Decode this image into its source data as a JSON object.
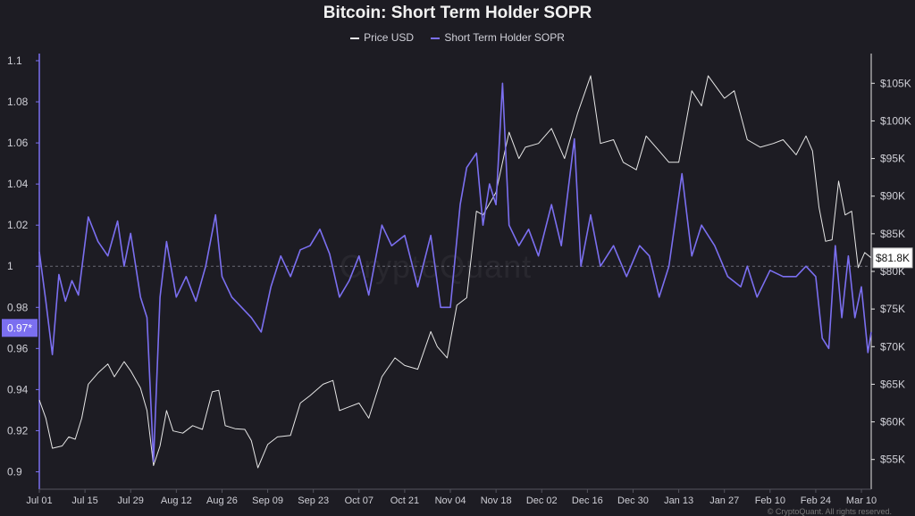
{
  "chart_data": {
    "type": "line",
    "title": "Bitcoin: Short Term Holder SOPR",
    "watermark": "CryptoQuant",
    "copyright": "© CryptoQuant. All rights reserved.",
    "grid": false,
    "legend_placement": "top-center",
    "x_ticks": [
      "Jul 01",
      "Jul 15",
      "Jul 29",
      "Aug 12",
      "Aug 26",
      "Sep 09",
      "Sep 23",
      "Oct 07",
      "Oct 21",
      "Nov 04",
      "Nov 18",
      "Dec 02",
      "Dec 16",
      "Dec 30",
      "Jan 13",
      "Jan 27",
      "Feb 10",
      "Feb 24",
      "Mar 10"
    ],
    "x_range": [
      "2024-07-01",
      "2025-03-13"
    ],
    "left_axis": {
      "ticks": [
        "1.1",
        "1.08",
        "1.06",
        "1.04",
        "1.02",
        "1",
        "0.98",
        "0.96",
        "0.94",
        "0.92",
        "0.9"
      ],
      "range": [
        0.895,
        1.1
      ]
    },
    "right_axis": {
      "ticks": [
        "$105K",
        "$100K",
        "$95K",
        "$90K",
        "$85K",
        "$80K",
        "$75K",
        "$70K",
        "$65K",
        "$60K",
        "$55K"
      ],
      "range": [
        52000,
        108000
      ]
    },
    "current_values": {
      "sopr_label": "0.97*",
      "sopr_value": 0.97,
      "price_label": "$81.8K",
      "price_value": 81800
    },
    "reference_line": 1,
    "colors": {
      "price": "#e6e6e6",
      "sopr": "#7b6ff0",
      "background": "#1d1c23"
    },
    "series": [
      {
        "name": "Price USD",
        "axis": "right",
        "points": [
          [
            "2024-07-01",
            62900
          ],
          [
            "2024-07-03",
            60500
          ],
          [
            "2024-07-05",
            56500
          ],
          [
            "2024-07-08",
            56800
          ],
          [
            "2024-07-10",
            58000
          ],
          [
            "2024-07-12",
            57700
          ],
          [
            "2024-07-14",
            60500
          ],
          [
            "2024-07-16",
            65000
          ],
          [
            "2024-07-19",
            66500
          ],
          [
            "2024-07-22",
            67700
          ],
          [
            "2024-07-24",
            66000
          ],
          [
            "2024-07-27",
            68000
          ],
          [
            "2024-07-29",
            66800
          ],
          [
            "2024-08-01",
            64500
          ],
          [
            "2024-08-03",
            61500
          ],
          [
            "2024-08-05",
            54200
          ],
          [
            "2024-08-07",
            56800
          ],
          [
            "2024-08-09",
            61500
          ],
          [
            "2024-08-11",
            58800
          ],
          [
            "2024-08-14",
            58500
          ],
          [
            "2024-08-17",
            59500
          ],
          [
            "2024-08-20",
            59000
          ],
          [
            "2024-08-23",
            64000
          ],
          [
            "2024-08-25",
            64200
          ],
          [
            "2024-08-27",
            59500
          ],
          [
            "2024-08-30",
            59100
          ],
          [
            "2024-09-02",
            59000
          ],
          [
            "2024-09-04",
            57500
          ],
          [
            "2024-09-06",
            53900
          ],
          [
            "2024-09-09",
            57000
          ],
          [
            "2024-09-12",
            58000
          ],
          [
            "2024-09-16",
            58200
          ],
          [
            "2024-09-19",
            62500
          ],
          [
            "2024-09-22",
            63500
          ],
          [
            "2024-09-26",
            65000
          ],
          [
            "2024-09-29",
            65500
          ],
          [
            "2024-10-01",
            61500
          ],
          [
            "2024-10-04",
            62000
          ],
          [
            "2024-10-07",
            62500
          ],
          [
            "2024-10-10",
            60500
          ],
          [
            "2024-10-14",
            66000
          ],
          [
            "2024-10-18",
            68500
          ],
          [
            "2024-10-21",
            67500
          ],
          [
            "2024-10-25",
            67000
          ],
          [
            "2024-10-29",
            72000
          ],
          [
            "2024-10-31",
            70000
          ],
          [
            "2024-11-03",
            68500
          ],
          [
            "2024-11-06",
            75500
          ],
          [
            "2024-11-09",
            76500
          ],
          [
            "2024-11-12",
            88000
          ],
          [
            "2024-11-14",
            87500
          ],
          [
            "2024-11-18",
            90500
          ],
          [
            "2024-11-22",
            98500
          ],
          [
            "2024-11-25",
            95000
          ],
          [
            "2024-11-27",
            96500
          ],
          [
            "2024-12-01",
            97000
          ],
          [
            "2024-12-05",
            99000
          ],
          [
            "2024-12-09",
            95000
          ],
          [
            "2024-12-13",
            101000
          ],
          [
            "2024-12-17",
            106000
          ],
          [
            "2024-12-20",
            97000
          ],
          [
            "2024-12-24",
            97500
          ],
          [
            "2024-12-27",
            94500
          ],
          [
            "2024-12-31",
            93500
          ],
          [
            "2025-01-03",
            98000
          ],
          [
            "2025-01-07",
            96000
          ],
          [
            "2025-01-10",
            94500
          ],
          [
            "2025-01-13",
            94500
          ],
          [
            "2025-01-17",
            104000
          ],
          [
            "2025-01-20",
            102000
          ],
          [
            "2025-01-22",
            106000
          ],
          [
            "2025-01-27",
            103000
          ],
          [
            "2025-01-30",
            104000
          ],
          [
            "2025-02-03",
            97500
          ],
          [
            "2025-02-07",
            96500
          ],
          [
            "2025-02-11",
            97000
          ],
          [
            "2025-02-14",
            97500
          ],
          [
            "2025-02-18",
            95500
          ],
          [
            "2025-02-21",
            98000
          ],
          [
            "2025-02-23",
            96000
          ],
          [
            "2025-02-25",
            88500
          ],
          [
            "2025-02-27",
            84000
          ],
          [
            "2025-03-01",
            84200
          ],
          [
            "2025-03-03",
            92000
          ],
          [
            "2025-03-05",
            87500
          ],
          [
            "2025-03-07",
            88000
          ],
          [
            "2025-03-09",
            80500
          ],
          [
            "2025-03-11",
            82500
          ],
          [
            "2025-03-13",
            81800
          ]
        ]
      },
      {
        "name": "Short Term Holder SOPR",
        "axis": "left",
        "points": [
          [
            "2024-07-01",
            1.007
          ],
          [
            "2024-07-03",
            0.983
          ],
          [
            "2024-07-05",
            0.957
          ],
          [
            "2024-07-07",
            0.996
          ],
          [
            "2024-07-09",
            0.983
          ],
          [
            "2024-07-11",
            0.993
          ],
          [
            "2024-07-13",
            0.986
          ],
          [
            "2024-07-16",
            1.024
          ],
          [
            "2024-07-19",
            1.012
          ],
          [
            "2024-07-22",
            1.005
          ],
          [
            "2024-07-25",
            1.022
          ],
          [
            "2024-07-27",
            1.0
          ],
          [
            "2024-07-29",
            1.016
          ],
          [
            "2024-08-01",
            0.985
          ],
          [
            "2024-08-03",
            0.975
          ],
          [
            "2024-08-05",
            0.905
          ],
          [
            "2024-08-07",
            0.985
          ],
          [
            "2024-08-09",
            1.012
          ],
          [
            "2024-08-12",
            0.985
          ],
          [
            "2024-08-15",
            0.995
          ],
          [
            "2024-08-18",
            0.983
          ],
          [
            "2024-08-21",
            1.0
          ],
          [
            "2024-08-24",
            1.025
          ],
          [
            "2024-08-26",
            0.995
          ],
          [
            "2024-08-29",
            0.985
          ],
          [
            "2024-09-01",
            0.98
          ],
          [
            "2024-09-04",
            0.975
          ],
          [
            "2024-09-07",
            0.968
          ],
          [
            "2024-09-10",
            0.99
          ],
          [
            "2024-09-13",
            1.005
          ],
          [
            "2024-09-16",
            0.995
          ],
          [
            "2024-09-19",
            1.008
          ],
          [
            "2024-09-22",
            1.01
          ],
          [
            "2024-09-25",
            1.018
          ],
          [
            "2024-09-28",
            1.006
          ],
          [
            "2024-10-01",
            0.985
          ],
          [
            "2024-10-04",
            0.993
          ],
          [
            "2024-10-07",
            1.005
          ],
          [
            "2024-10-10",
            0.986
          ],
          [
            "2024-10-14",
            1.02
          ],
          [
            "2024-10-17",
            1.01
          ],
          [
            "2024-10-21",
            1.015
          ],
          [
            "2024-10-25",
            0.99
          ],
          [
            "2024-10-29",
            1.015
          ],
          [
            "2024-11-01",
            0.98
          ],
          [
            "2024-11-04",
            0.98
          ],
          [
            "2024-11-07",
            1.03
          ],
          [
            "2024-11-09",
            1.048
          ],
          [
            "2024-11-12",
            1.055
          ],
          [
            "2024-11-14",
            1.02
          ],
          [
            "2024-11-16",
            1.04
          ],
          [
            "2024-11-18",
            1.03
          ],
          [
            "2024-11-20",
            1.089
          ],
          [
            "2024-11-22",
            1.02
          ],
          [
            "2024-11-25",
            1.01
          ],
          [
            "2024-11-28",
            1.018
          ],
          [
            "2024-12-01",
            1.005
          ],
          [
            "2024-12-05",
            1.03
          ],
          [
            "2024-12-08",
            1.01
          ],
          [
            "2024-12-12",
            1.062
          ],
          [
            "2024-12-14",
            1.0
          ],
          [
            "2024-12-17",
            1.025
          ],
          [
            "2024-12-20",
            1.0
          ],
          [
            "2024-12-24",
            1.01
          ],
          [
            "2024-12-28",
            0.995
          ],
          [
            "2025-01-01",
            1.01
          ],
          [
            "2025-01-04",
            1.005
          ],
          [
            "2025-01-07",
            0.985
          ],
          [
            "2025-01-10",
            1.0
          ],
          [
            "2025-01-14",
            1.045
          ],
          [
            "2025-01-17",
            1.005
          ],
          [
            "2025-01-20",
            1.02
          ],
          [
            "2025-01-24",
            1.01
          ],
          [
            "2025-01-28",
            0.995
          ],
          [
            "2025-02-01",
            0.99
          ],
          [
            "2025-02-03",
            1.0
          ],
          [
            "2025-02-06",
            0.985
          ],
          [
            "2025-02-10",
            0.998
          ],
          [
            "2025-02-14",
            0.995
          ],
          [
            "2025-02-18",
            0.995
          ],
          [
            "2025-02-21",
            1.0
          ],
          [
            "2025-02-24",
            0.995
          ],
          [
            "2025-02-26",
            0.965
          ],
          [
            "2025-02-28",
            0.96
          ],
          [
            "2025-03-02",
            1.01
          ],
          [
            "2025-03-04",
            0.975
          ],
          [
            "2025-03-06",
            1.005
          ],
          [
            "2025-03-08",
            0.975
          ],
          [
            "2025-03-10",
            0.99
          ],
          [
            "2025-03-12",
            0.958
          ],
          [
            "2025-03-13",
            0.968
          ]
        ]
      }
    ]
  }
}
